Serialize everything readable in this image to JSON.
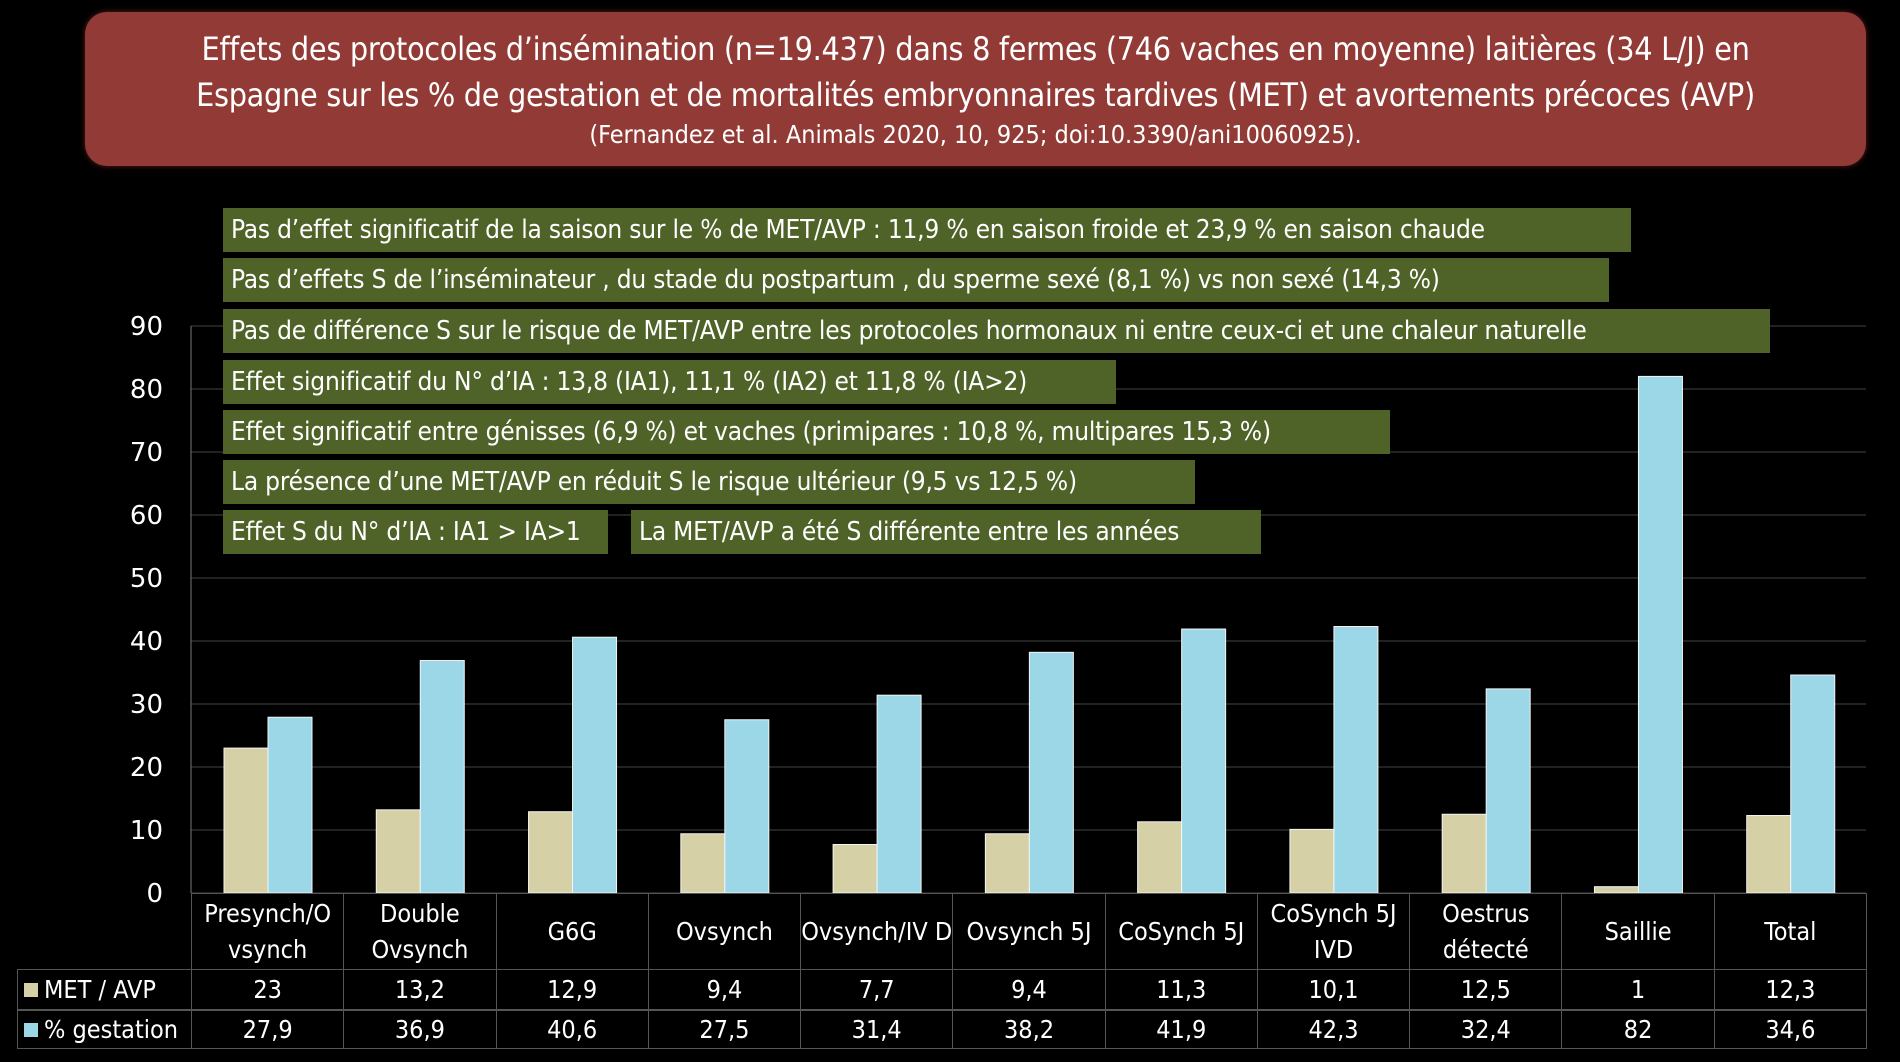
{
  "title": {
    "line1": "Effets des protocoles d’insémination (n=19.437) dans 8 fermes (746 vaches en moyenne) laitières (34 L/J) en",
    "line2": "Espagne sur les % de gestation et de mortalités embryonnaires tardives (MET) et avortements précoces (AVP)",
    "reference": "(Fernandez et al. Animals 2020, 10, 925; doi:10.3390/ani10060925)."
  },
  "notes": [
    "Pas d’effet significatif de la saison sur le % de MET/AVP : 11,9 % en saison froide et 23,9 % en saison chaude",
    "Pas d’effets S de l’inséminateur , du stade du postpartum , du sperme sexé  (8,1 %) vs non sexé (14,3 %)",
    "Pas de différence S sur le risque de MET/AVP entre les protocoles hormonaux ni entre  ceux-ci et une chaleur naturelle",
    "Effet significatif du N° d’IA : 13,8 (IA1), 11,1 % (IA2) et 11,8 % (IA>2)",
    "Effet significatif entre génisses (6,9 %) et vaches (primipares : 10,8 %, multipares 15,3 %)",
    "La présence d’une MET/AVP en réduit  S le risque ultérieur  (9,5 vs 12,5 %)",
    "Effet S du N° d’IA : IA1 > IA>1",
    "La MET/AVP a été S différente entre les années"
  ],
  "chart_data": {
    "type": "bar",
    "categories": [
      "Presynch/O vsynch",
      "Double Ovsynch",
      "G6G",
      "Ovsynch",
      "Ovsynch/IV D",
      "Ovsynch 5J",
      "CoSynch 5J",
      "CoSynch 5J IVD",
      "Oestrus détecté",
      "Saillie",
      "Total"
    ],
    "series": [
      {
        "name": "MET / AVP",
        "color": "#d6d0a6",
        "values": [
          23,
          13.2,
          12.9,
          9.4,
          7.7,
          9.4,
          11.3,
          10.1,
          12.5,
          1,
          12.3
        ],
        "labels": [
          "23",
          "13,2",
          "12,9",
          "9,4",
          "7,7",
          "9,4",
          "11,3",
          "10,1",
          "12,5",
          "1",
          "12,3"
        ]
      },
      {
        "name": "% gestation",
        "color": "#9bd7e6",
        "values": [
          27.9,
          36.9,
          40.6,
          27.5,
          31.4,
          38.2,
          41.9,
          42.3,
          32.4,
          82,
          34.6
        ],
        "labels": [
          "27,9",
          "36,9",
          "40,6",
          "27,5",
          "31,4",
          "38,2",
          "41,9",
          "42,3",
          "32,4",
          "82",
          "34,6"
        ]
      }
    ],
    "ylim": [
      0,
      90
    ],
    "yticks": [
      "0",
      "10",
      "20",
      "30",
      "40",
      "50",
      "60",
      "70",
      "80",
      "90"
    ],
    "grid": true,
    "legend": "data-table"
  }
}
